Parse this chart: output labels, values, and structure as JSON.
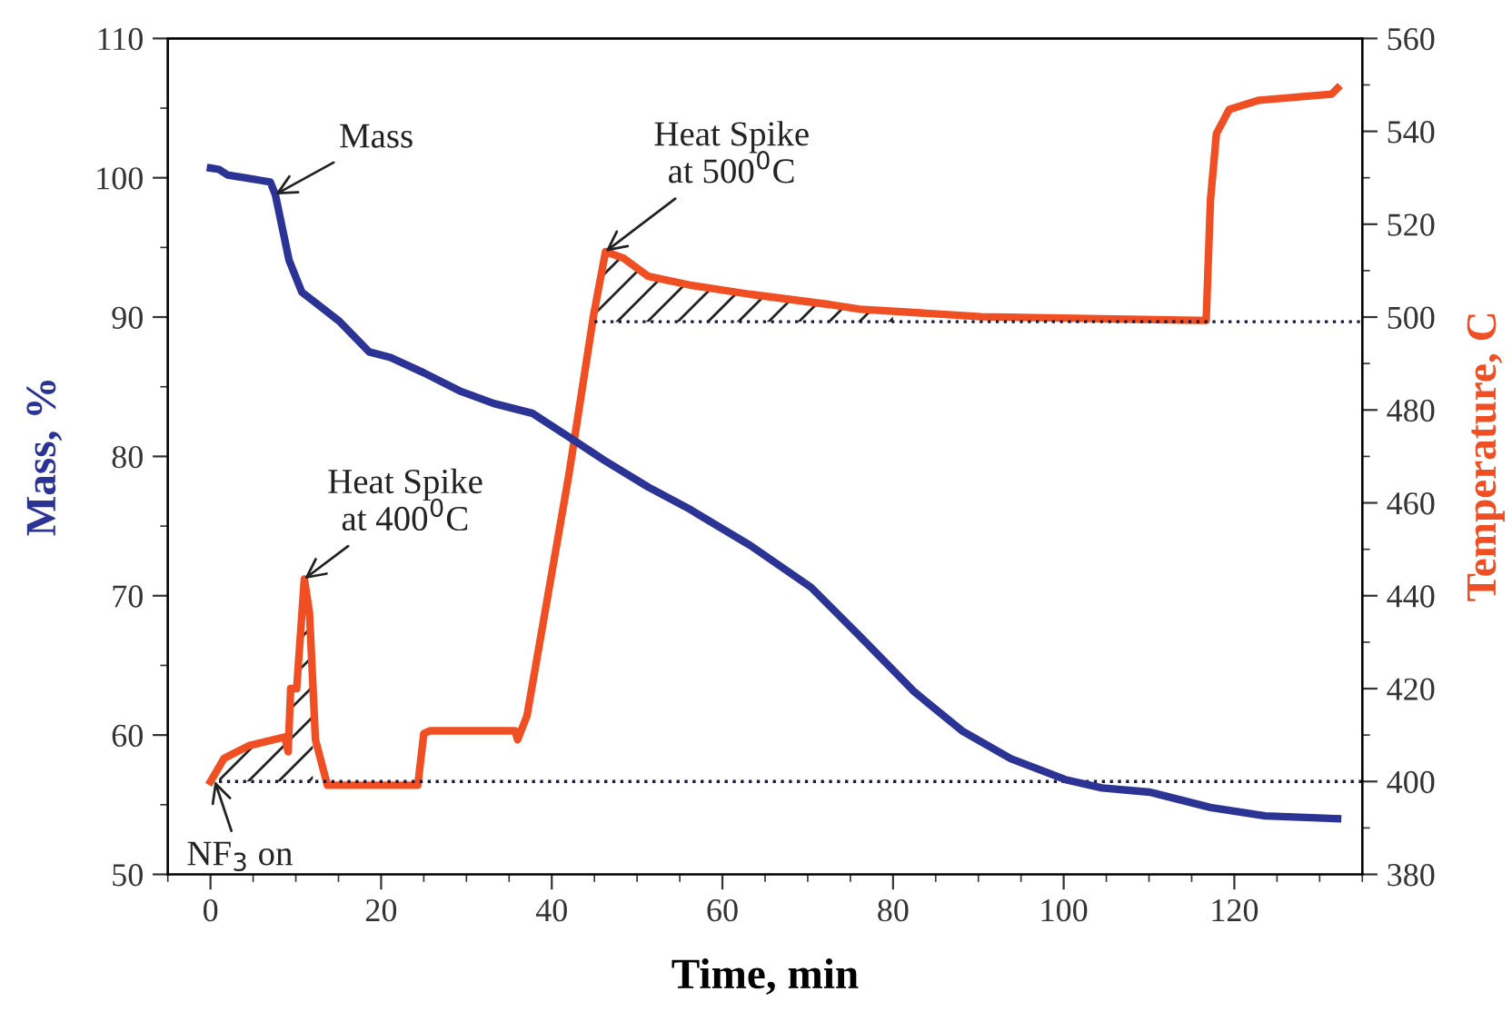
{
  "chart_data": {
    "type": "line",
    "xlabel": "Time, min",
    "ylabel": "Mass, %",
    "y2label": "Temperature, C",
    "xlim": [
      -5,
      135
    ],
    "ylim": [
      50,
      110
    ],
    "y2lim": [
      380,
      560
    ],
    "xticks": [
      {
        "value": -5,
        "label": null
      },
      0,
      {
        "value": 5,
        "label": null
      },
      {
        "value": 10,
        "label": null
      },
      {
        "value": 15,
        "label": null
      },
      20,
      {
        "value": 25,
        "label": null
      },
      {
        "value": 30,
        "label": null
      },
      {
        "value": 35,
        "label": null
      },
      40,
      {
        "value": 45,
        "label": null
      },
      {
        "value": 50,
        "label": null
      },
      {
        "value": 55,
        "label": null
      },
      60,
      {
        "value": 65,
        "label": null
      },
      {
        "value": 70,
        "label": null
      },
      {
        "value": 75,
        "label": null
      },
      80,
      {
        "value": 85,
        "label": null
      },
      {
        "value": 90,
        "label": null
      },
      {
        "value": 95,
        "label": null
      },
      100,
      {
        "value": 105,
        "label": null
      },
      {
        "value": 110,
        "label": null
      },
      {
        "value": 115,
        "label": null
      },
      120,
      {
        "value": 125,
        "label": null
      },
      {
        "value": 130,
        "label": null
      },
      {
        "value": 135,
        "label": null
      }
    ],
    "yticks": [
      50,
      {
        "value": 55,
        "label": null
      },
      60,
      {
        "value": 65,
        "label": null
      },
      70,
      {
        "value": 75,
        "label": null
      },
      80,
      {
        "value": 85,
        "label": null
      },
      90,
      {
        "value": 95,
        "label": null
      },
      100,
      {
        "value": 105,
        "label": null
      },
      110
    ],
    "y2ticks": [
      380,
      {
        "value": 390,
        "label": null
      },
      400,
      {
        "value": 410,
        "label": null
      },
      420,
      {
        "value": 430,
        "label": null
      },
      440,
      {
        "value": 450,
        "label": null
      },
      460,
      {
        "value": 470,
        "label": null
      },
      480,
      {
        "value": 490,
        "label": null
      },
      500,
      {
        "value": 510,
        "label": null
      },
      520,
      {
        "value": 530,
        "label": null
      },
      540,
      {
        "value": 550,
        "label": null
      },
      560
    ],
    "grid": false,
    "legend": false,
    "series": [
      {
        "color": "#2b3494",
        "x": [
          0,
          1,
          2,
          4,
          6,
          7,
          7.6,
          9.2,
          10.7,
          13,
          15.1,
          18.6,
          21.1,
          25,
          29.2,
          33.2,
          37.7,
          42,
          46.2,
          51.3,
          56.2,
          63.3,
          70.4,
          76.1,
          82.5,
          88.1,
          93.8,
          100.2,
          104.5,
          110.1,
          117.2,
          123.6,
          132.1
        ],
        "values": [
          100.7,
          100.6,
          100.2,
          100.0,
          99.8,
          99.7,
          98.8,
          94.1,
          91.8,
          90.7,
          89.7,
          87.5,
          87.1,
          86.0,
          84.7,
          83.8,
          83.1,
          81.4,
          79.7,
          77.8,
          76.2,
          73.6,
          70.6,
          67.1,
          63.1,
          60.3,
          58.3,
          56.8,
          56.2,
          55.9,
          54.8,
          54.2,
          54.0
        ]
      },
      {
        "color": "#f04f23",
        "axis": "y2",
        "x": [
          0,
          1.6,
          4.5,
          8.7,
          9.1,
          9.4,
          10.1,
          11.0,
          11.6,
          12.3,
          13.7,
          24.3,
          25.0,
          25.7,
          35.7,
          36.0,
          37.1,
          42.0,
          44.9,
          46.3,
          48.4,
          51.3,
          56.2,
          63.3,
          72.6,
          76.1,
          90.3,
          115.8,
          116.7,
          117.2,
          117.9,
          119.4,
          122.9,
          131.4,
          132.1
        ],
        "values": [
          400,
          405,
          407.7,
          409.6,
          406.4,
          420,
          420,
          443.6,
          436.4,
          409,
          399.2,
          399.2,
          410.3,
          410.9,
          410.9,
          409,
          414.2,
          466,
          500.4,
          514.1,
          512.7,
          508.8,
          506.9,
          504.9,
          502.7,
          501.7,
          500.1,
          499.3,
          499.3,
          525.1,
          539.5,
          544.7,
          546.7,
          548,
          549.3
        ]
      },
      {
        "type": "area",
        "color": "#222222",
        "axis": "y2",
        "x": [
          1,
          1.6,
          4.5,
          8.7,
          9.1,
          9.4,
          10.1,
          11.0,
          11.6,
          12.0
        ],
        "values": [
          403.5,
          405,
          407.7,
          409.6,
          406.4,
          420,
          420,
          443.6,
          436.4,
          422
        ]
      },
      {
        "type": "area",
        "color": "#222222",
        "axis": "y2",
        "x": [
          45,
          46.3,
          48.4,
          51.3,
          56.2,
          63.3,
          72.6,
          76.1,
          80
        ],
        "values": [
          500.6,
          514.1,
          512.7,
          508.8,
          506.9,
          504.9,
          502.7,
          501.7,
          501.2
        ]
      }
    ],
    "ref_lines": [
      {
        "axis": "y2",
        "value": 400,
        "color": "#1a1a40",
        "line_style": "dotted"
      },
      {
        "axis": "y2",
        "value": 499,
        "color": "#1a1a40",
        "line_style": "dotted"
      }
    ],
    "annotations": [
      {
        "text": "Mass",
        "x": 7.6,
        "y": 98.8
      },
      {
        "text": "Heat Spike\nat 500$^{0}$C",
        "x": 46.3,
        "y": 94.7
      },
      {
        "text": "Heat Spike\nat 400$^{0}$C",
        "x": 11.0,
        "y": 71.2
      },
      {
        "text": "NF$_{3}$ on",
        "x": 0.5,
        "y": 56.7
      }
    ]
  }
}
